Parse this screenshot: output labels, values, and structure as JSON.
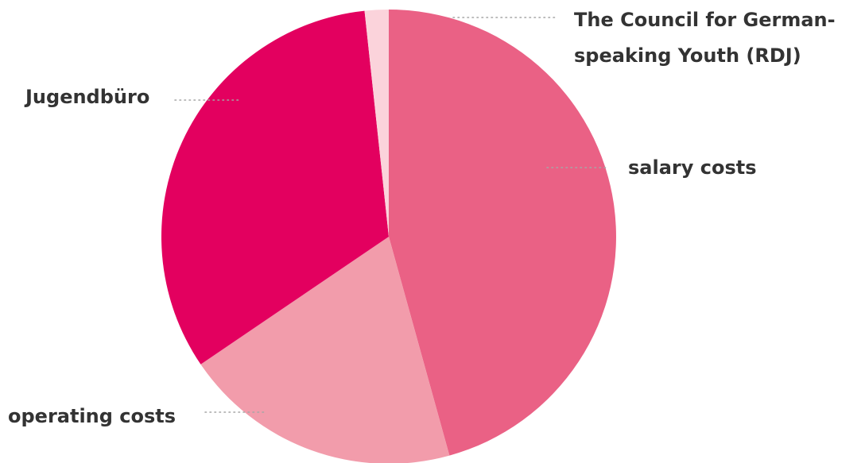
{
  "chart_data": {
    "type": "pie",
    "slices": [
      {
        "label": "salary costs",
        "value": 45.7,
        "color": "#ea6185"
      },
      {
        "label": "operating costs",
        "value": 19.8,
        "color": "#f29cab"
      },
      {
        "label": "Jugendbüro",
        "value": 32.8,
        "color": "#e3005f"
      },
      {
        "label": "The Council for German-speaking Youth (RDJ)",
        "value": 1.7,
        "color": "#fbd3db",
        "label_lines": [
          "The Council for German-",
          "speaking Youth (RDJ)"
        ]
      }
    ],
    "start_angle_deg": 0,
    "direction": "clockwise",
    "legend": "none"
  }
}
